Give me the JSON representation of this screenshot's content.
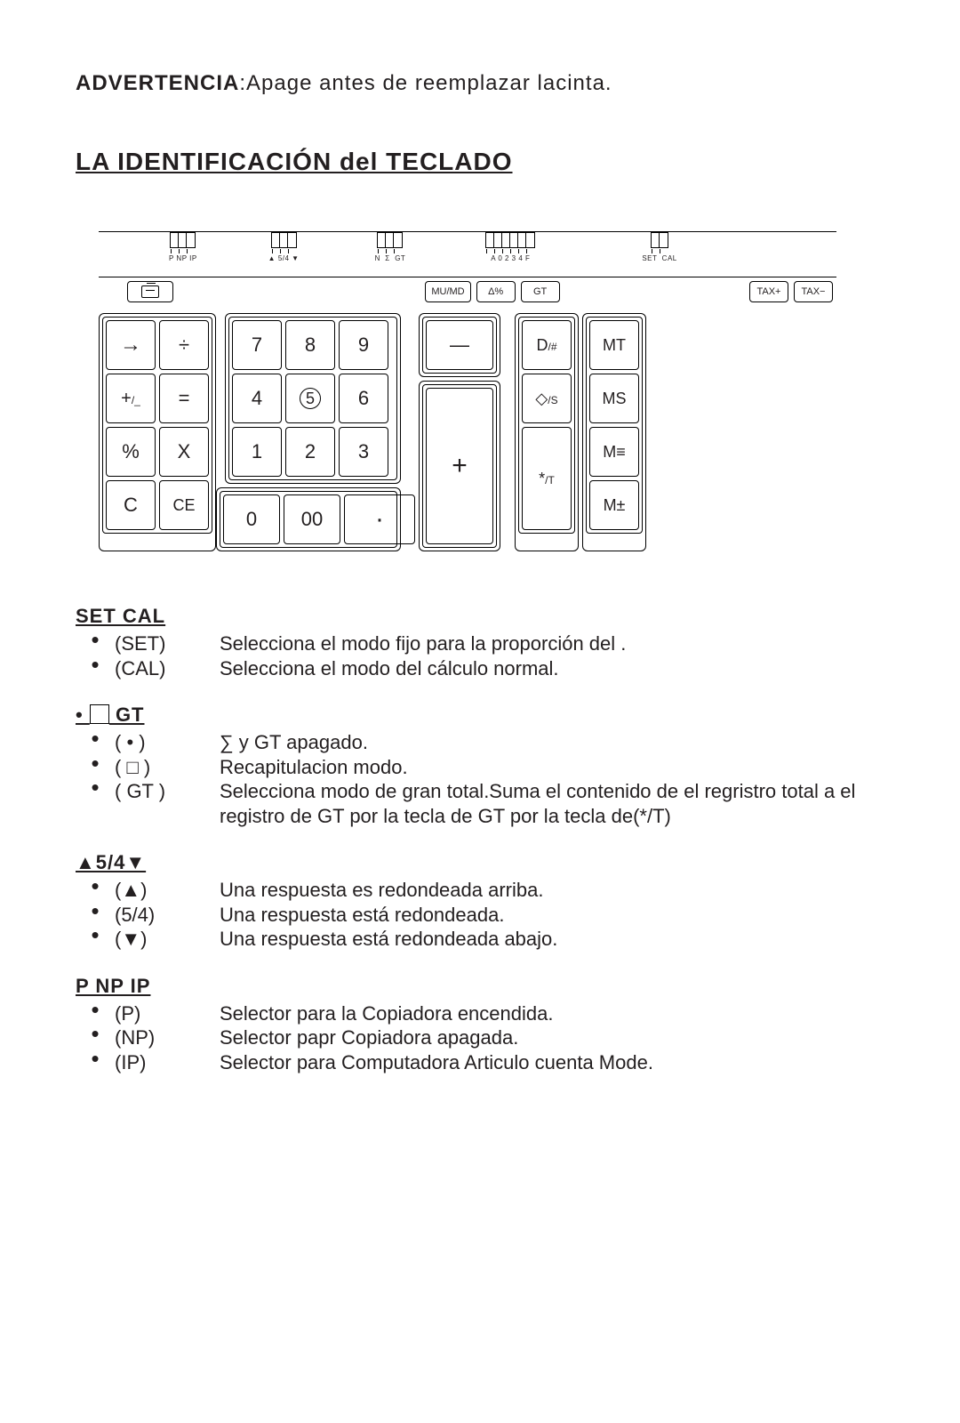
{
  "warning_label": "ADVERTENCIA",
  "warning_text": ":Apage  antes  de  reemplazar  lacinta.",
  "title": "LA  IDENTIFICACIÓN  del  TECLADO",
  "sliders": [
    {
      "cells": 3,
      "label": "P NP IP"
    },
    {
      "cells": 3,
      "label": "▲ 5/4 ▼"
    },
    {
      "cells": 3,
      "label": "N  Σ  GT"
    },
    {
      "cells": 6,
      "label": "A 0 2 3 4 F"
    },
    {
      "cells": 2,
      "label": "SET  CAL"
    }
  ],
  "fn_keys_left": [
    "paper"
  ],
  "fn_keys_mid": [
    "MU/MD",
    "Δ%",
    "GT"
  ],
  "fn_keys_right": [
    "TAX+",
    "TAX−"
  ],
  "left_panel": [
    [
      "→",
      "÷"
    ],
    [
      "+/_",
      "="
    ],
    [
      "%",
      "X"
    ],
    [
      "C",
      "CE"
    ]
  ],
  "num_top": [
    [
      "7",
      "8",
      "9"
    ],
    [
      "4",
      "⑤",
      "6"
    ],
    [
      "1",
      "2",
      "3"
    ]
  ],
  "num_bottom": [
    "0",
    "00",
    "·"
  ],
  "minus_key": "—",
  "plus_key": "+",
  "right_col_l": [
    "D/#",
    "◇/S",
    "*/T"
  ],
  "right_col_r": [
    "MT",
    "MS",
    "M≡",
    "M±"
  ],
  "sections": [
    {
      "head": "SET CAL",
      "rows": [
        {
          "term": "(SET)",
          "desc": "Selecciona el modo fijo para la proporción del ."
        },
        {
          "term": "(CAL)",
          "desc": "Selecciona el modo del cálculo normal."
        }
      ]
    },
    {
      "head_html": "•  <span class='square-box'></span>  GT",
      "rows": [
        {
          "term": "(  •  )",
          "desc": "∑ y GT apagado."
        },
        {
          "term": "(  □  )",
          "desc": "Recapitulacion modo."
        },
        {
          "term": "( GT )",
          "desc": "Selecciona modo de gran total.Suma el contenido de el regristro total a el registro de GT por la tecla de GT por la tecla de(*/T)"
        }
      ]
    },
    {
      "head": "▲5/4▼",
      "rows": [
        {
          "term": "(▲)",
          "desc": "Una respuesta es redondeada arriba."
        },
        {
          "term": "(5/4)",
          "desc": "Una respuesta está redondeada."
        },
        {
          "term": "(▼)",
          "desc": "Una respuesta está redondeada abajo."
        }
      ]
    },
    {
      "head": "P  NP  IP",
      "rows": [
        {
          "term": "(P)",
          "desc": "Selector para la Copiadora encendida."
        },
        {
          "term": "(NP)",
          "desc": "Selector papr Copiadora apagada."
        },
        {
          "term": "(IP)",
          "desc": "Selector para Computadora Articulo cuenta Mode."
        }
      ]
    }
  ]
}
